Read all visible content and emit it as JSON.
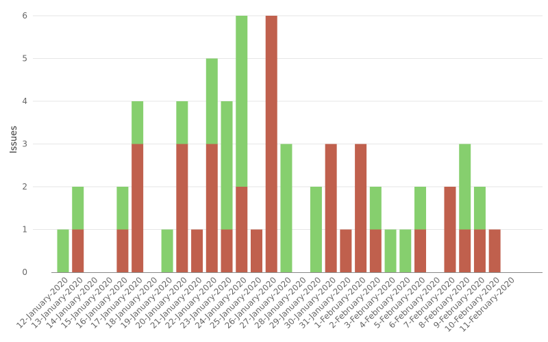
{
  "chart_data": {
    "type": "bar",
    "stacked": true,
    "ylabel": "Issues",
    "ylim": [
      0,
      6
    ],
    "yticks": [
      "0",
      "1",
      "2",
      "3",
      "4",
      "5",
      "6"
    ],
    "grid": true,
    "legend": "none",
    "categories": [
      "12-January-2020",
      "13-January-2020",
      "14-January-2020",
      "15-January-2020",
      "16-January-2020",
      "17-January-2020",
      "18-January-2020",
      "19-January-2020",
      "20-January-2020",
      "21-January-2020",
      "22-January-2020",
      "23-January-2020",
      "24-January-2020",
      "25-January-2020",
      "26-January-2020",
      "27-January-2020",
      "28-January-2020",
      "29-January-2020",
      "30-January-2020",
      "31-January-2020",
      "1-February-2020",
      "2-February-2020",
      "3-February-2020",
      "4-February-2020",
      "5-February-2020",
      "6-February-2020",
      "7-February-2020",
      "8-February-2020",
      "9-February-2020",
      "10-February-2020",
      "11-February-2020"
    ],
    "series": [
      {
        "color": "#c0604d",
        "values": [
          0,
          1,
          0,
          0,
          1,
          3,
          0,
          0,
          3,
          1,
          3,
          1,
          2,
          1,
          6,
          0,
          0,
          0,
          3,
          1,
          3,
          1,
          0,
          0,
          1,
          0,
          2,
          1,
          1,
          1,
          0
        ]
      },
      {
        "color": "#86cf6e",
        "values": [
          1,
          1,
          0,
          0,
          1,
          1,
          0,
          1,
          1,
          0,
          2,
          3,
          4,
          0,
          0,
          3,
          0,
          2,
          0,
          0,
          0,
          1,
          1,
          1,
          1,
          0,
          0,
          2,
          1,
          0,
          0
        ]
      }
    ]
  }
}
